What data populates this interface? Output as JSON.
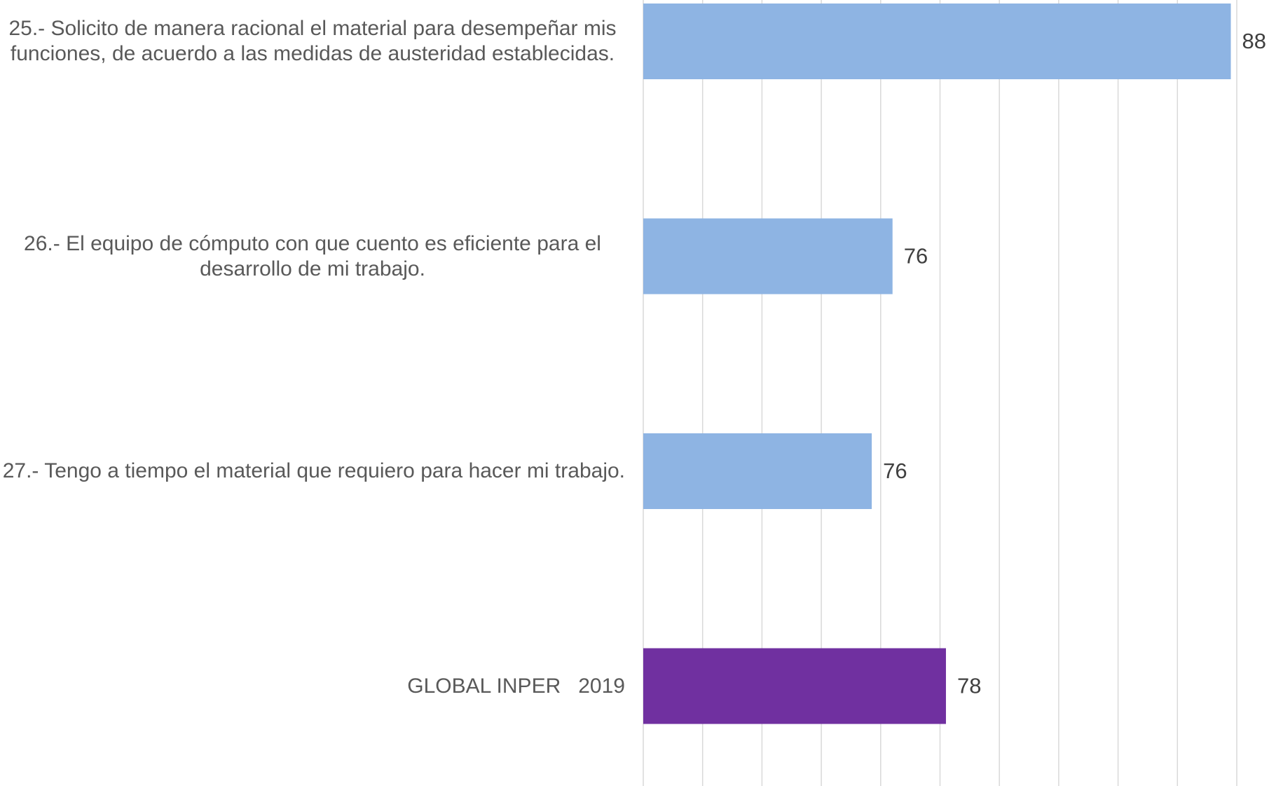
{
  "chart_data": {
    "type": "barh",
    "categories": [
      "25.- Solicito de manera racional el material para desempeñar mis funciones, de acuerdo a las medidas de austeridad establecidas.",
      "26.- El equipo de cómputo con que cuento es eficiente para el desarrollo de mi trabajo.",
      "27.- Tengo a tiempo el material que requiero para hacer mi trabajo.",
      "GLOBAL INPER   2019"
    ],
    "values": [
      87.8,
      76.4,
      75.7,
      78.2
    ],
    "value_labels": [
      "88",
      "76",
      "76",
      "78"
    ],
    "colors": [
      "#8eb4e3",
      "#8eb4e3",
      "#8eb4e3",
      "#7030a0"
    ],
    "xlim": [
      68,
      88
    ],
    "xticks": [
      68,
      70,
      72,
      74,
      76,
      78,
      80,
      82,
      84,
      86,
      88
    ],
    "grid": true
  }
}
